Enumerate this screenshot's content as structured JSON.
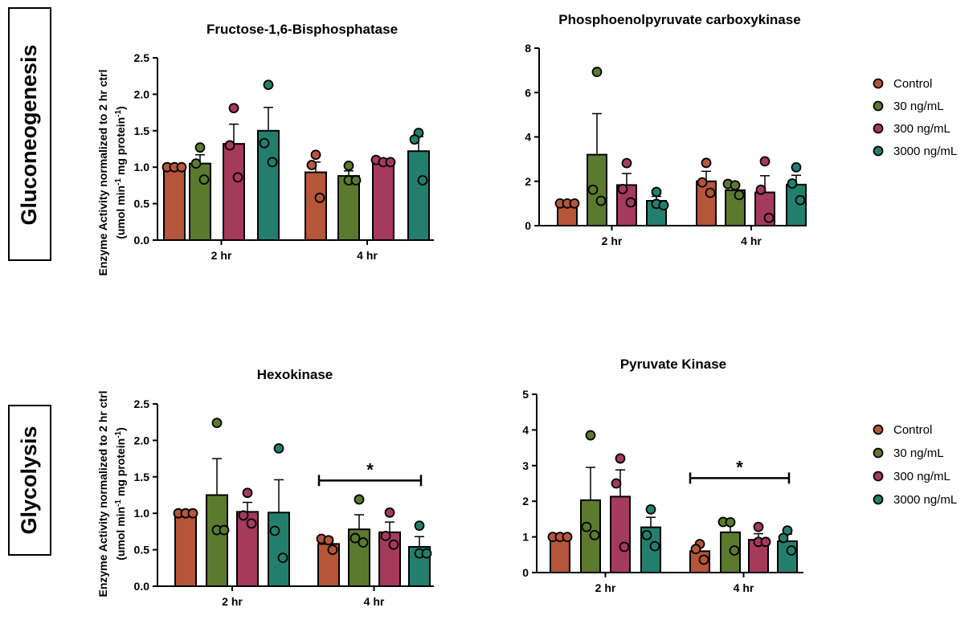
{
  "figure": {
    "section_labels": [
      "Gluconeogenesis",
      "Glycolysis"
    ],
    "ylabel_line1": "Enzyme  Activity normalized to 2 hr ctrl",
    "ylabel_line2_parts": [
      "(umol min",
      "-1",
      " mg protein",
      "-1",
      ")"
    ],
    "legends": [
      {
        "entries": [
          "Control",
          "30 ng/mL",
          "300 ng/mL",
          "3000 ng/mL"
        ]
      },
      {
        "entries": [
          "Control",
          "30 ng/mL",
          "300 ng/mL",
          "3000 ng/mL"
        ]
      }
    ],
    "colors": {
      "Control": "#b5553a",
      "30 ng/mL": "#5b7a2e",
      "300 ng/mL": "#a43a5c",
      "3000 ng/mL": "#237f6d"
    }
  },
  "chart_data": [
    {
      "type": "bar",
      "title": "Fructose-1,6-Bisphosphatase",
      "categories": [
        "2 hr",
        "4 hr"
      ],
      "ylim": [
        0,
        2.5
      ],
      "yticks": [
        "0.0",
        "0.5",
        "1.0",
        "1.5",
        "2.0",
        "2.5"
      ],
      "series": [
        {
          "name": "Control",
          "values": [
            1.0,
            0.93
          ],
          "errors": [
            0.0,
            0.14
          ],
          "points": [
            [
              1.0,
              1.0,
              1.0
            ],
            [
              1.17,
              1.03,
              0.58
            ]
          ]
        },
        {
          "name": "30 ng/mL",
          "values": [
            1.05,
            0.88
          ],
          "errors": [
            0.12,
            0.07
          ],
          "points": [
            [
              1.27,
              1.05,
              0.83
            ],
            [
              1.02,
              0.82,
              0.82
            ]
          ]
        },
        {
          "name": "300 ng/mL",
          "values": [
            1.32,
            1.06
          ],
          "errors": [
            0.27,
            0.03
          ],
          "points": [
            [
              1.81,
              1.3,
              0.86
            ],
            [
              1.1,
              1.07,
              1.07
            ]
          ]
        },
        {
          "name": "3000 ng/mL",
          "values": [
            1.5,
            1.22
          ],
          "errors": [
            0.32,
            0.2
          ],
          "points": [
            [
              2.13,
              1.33,
              1.07
            ],
            [
              1.47,
              1.38,
              0.82
            ]
          ]
        }
      ],
      "significance": null
    },
    {
      "type": "bar",
      "title": "Phosphoenolpyruvate carboxykinase",
      "categories": [
        "2 hr",
        "4 hr"
      ],
      "ylim": [
        0,
        8
      ],
      "yticks": [
        "0",
        "2",
        "4",
        "6",
        "8"
      ],
      "series": [
        {
          "name": "Control",
          "values": [
            1.0,
            2.0
          ],
          "errors": [
            0.0,
            0.45
          ],
          "points": [
            [
              1.0,
              1.0,
              1.0
            ],
            [
              2.83,
              1.95,
              1.48
            ]
          ]
        },
        {
          "name": "30 ng/mL",
          "values": [
            3.2,
            1.6
          ],
          "errors": [
            1.85,
            0.15
          ],
          "points": [
            [
              6.93,
              1.62,
              1.12
            ],
            [
              1.88,
              1.82,
              1.38
            ]
          ]
        },
        {
          "name": "300 ng/mL",
          "values": [
            1.83,
            1.5
          ],
          "errors": [
            0.52,
            0.75
          ],
          "points": [
            [
              2.82,
              1.65,
              1.05
            ],
            [
              2.9,
              1.62,
              0.35
            ]
          ]
        },
        {
          "name": "3000 ng/mL",
          "values": [
            1.12,
            1.85
          ],
          "errors": [
            0.2,
            0.42
          ],
          "points": [
            [
              1.52,
              0.98,
              0.92
            ],
            [
              2.63,
              1.9,
              1.15
            ]
          ]
        }
      ],
      "significance": null
    },
    {
      "type": "bar",
      "title": "Hexokinase",
      "categories": [
        "2 hr",
        "4 hr"
      ],
      "ylim": [
        0,
        2.5
      ],
      "yticks": [
        "0.0",
        "0.5",
        "1.0",
        "1.5",
        "2.0",
        "2.5"
      ],
      "series": [
        {
          "name": "Control",
          "values": [
            1.0,
            0.58
          ],
          "errors": [
            0.0,
            0.08
          ],
          "points": [
            [
              1.0,
              1.0,
              1.0
            ],
            [
              0.65,
              0.63,
              0.5
            ]
          ]
        },
        {
          "name": "30 ng/mL",
          "values": [
            1.25,
            0.78
          ],
          "errors": [
            0.5,
            0.2
          ],
          "points": [
            [
              2.24,
              0.77,
              0.77
            ],
            [
              1.19,
              0.66,
              0.6
            ]
          ]
        },
        {
          "name": "300 ng/mL",
          "values": [
            1.02,
            0.74
          ],
          "errors": [
            0.13,
            0.14
          ],
          "points": [
            [
              1.28,
              0.97,
              0.86
            ],
            [
              1.01,
              0.69,
              0.57
            ]
          ]
        },
        {
          "name": "3000 ng/mL",
          "values": [
            1.01,
            0.54
          ],
          "errors": [
            0.45,
            0.14
          ],
          "points": [
            [
              1.89,
              0.76,
              0.39
            ],
            [
              0.83,
              0.45,
              0.45
            ]
          ]
        }
      ],
      "significance": {
        "label": "*",
        "from_category": 1,
        "from_series": 0,
        "to_category": 1,
        "to_series": 3,
        "y": 1.45
      }
    },
    {
      "type": "bar",
      "title": "Pyruvate Kinase",
      "categories": [
        "2 hr",
        "4 hr"
      ],
      "ylim": [
        0,
        5
      ],
      "yticks": [
        "0",
        "1",
        "2",
        "3",
        "4",
        "5"
      ],
      "series": [
        {
          "name": "Control",
          "values": [
            1.0,
            0.6
          ],
          "errors": [
            0.0,
            0.17
          ],
          "points": [
            [
              1.0,
              1.0,
              1.0
            ],
            [
              0.8,
              0.66,
              0.36
            ]
          ]
        },
        {
          "name": "30 ng/mL",
          "values": [
            2.03,
            1.13
          ],
          "errors": [
            0.92,
            0.28
          ],
          "points": [
            [
              3.85,
              1.28,
              1.05
            ],
            [
              1.42,
              1.41,
              0.62
            ]
          ]
        },
        {
          "name": "300 ng/mL",
          "values": [
            2.13,
            0.92
          ],
          "errors": [
            0.75,
            0.17
          ],
          "points": [
            [
              3.2,
              2.5,
              0.72
            ],
            [
              1.28,
              0.86,
              0.86
            ]
          ]
        },
        {
          "name": "3000 ng/mL",
          "values": [
            1.27,
            0.88
          ],
          "errors": [
            0.28,
            0.2
          ],
          "points": [
            [
              1.77,
              1.05,
              0.74
            ],
            [
              1.18,
              0.97,
              0.62
            ]
          ]
        }
      ],
      "significance": {
        "label": "*",
        "from_category": 1,
        "from_series": 0,
        "to_category": 1,
        "to_series": 3,
        "y": 2.65
      }
    }
  ]
}
